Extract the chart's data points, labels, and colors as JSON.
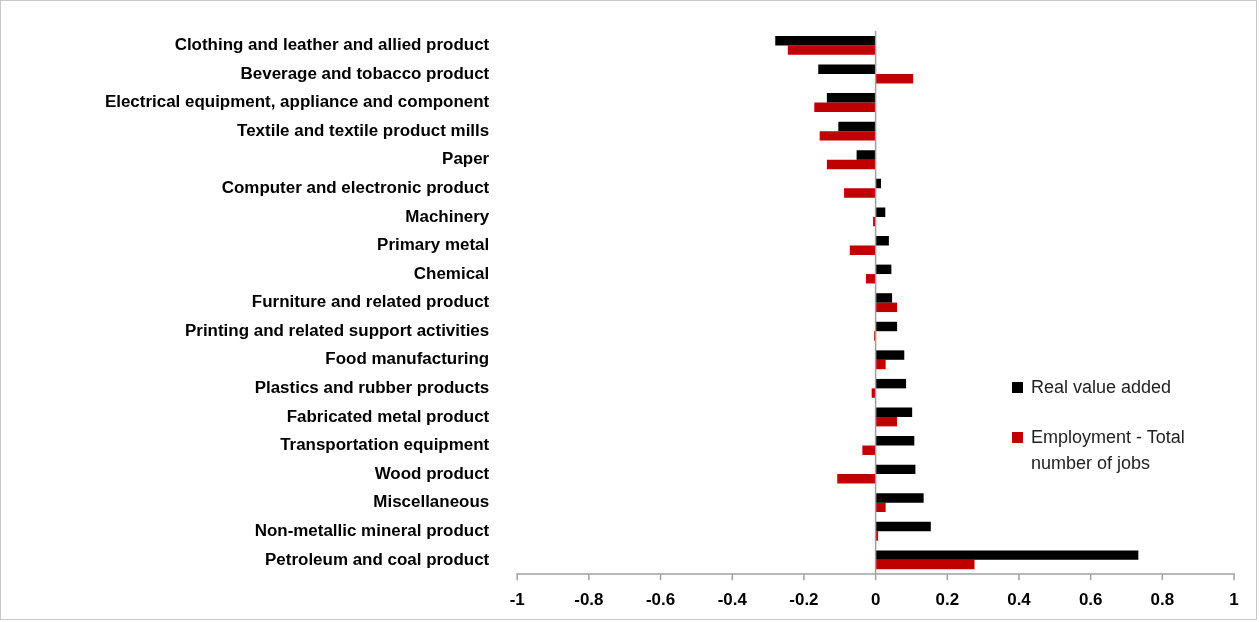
{
  "chart_data": {
    "type": "bar",
    "orientation": "horizontal",
    "categories": [
      "Clothing and leather and allied product",
      "Beverage and tobacco product",
      "Electrical equipment, appliance and component",
      "Textile and textile product mills",
      "Paper",
      "Computer and electronic product",
      "Machinery",
      "Primary metal",
      "Chemical",
      "Furniture and related product",
      "Printing and related support activities",
      "Food manufacturing",
      "Plastics and rubber products",
      "Fabricated metal product",
      "Transportation equipment",
      "Wood product",
      "Miscellaneous",
      "Non-metallic mineral product",
      "Petroleum and coal product"
    ],
    "series": [
      {
        "name": "Real value added",
        "color": "#000000",
        "values": [
          -0.28,
          -0.16,
          -0.136,
          -0.104,
          -0.053,
          0.015,
          0.027,
          0.037,
          0.044,
          0.046,
          0.06,
          0.08,
          0.085,
          0.102,
          0.108,
          0.111,
          0.134,
          0.154,
          0.733
        ]
      },
      {
        "name": "Employment - Total number of jobs",
        "color": "#c00000",
        "values": [
          -0.245,
          0.105,
          -0.171,
          -0.156,
          -0.136,
          -0.088,
          -0.007,
          -0.072,
          -0.027,
          0.06,
          -0.004,
          0.028,
          -0.011,
          0.06,
          -0.037,
          -0.107,
          0.028,
          0.007,
          0.276
        ]
      }
    ],
    "xlim": [
      -1,
      1
    ],
    "xticks": [
      -1,
      -0.8,
      -0.6,
      -0.4,
      -0.2,
      0,
      0.2,
      0.4,
      0.6,
      0.8,
      1
    ],
    "ref_lines": [
      {
        "axis": "x",
        "value": 0,
        "color": "#a0a0a0"
      }
    ],
    "grid": false,
    "legend": "right"
  }
}
